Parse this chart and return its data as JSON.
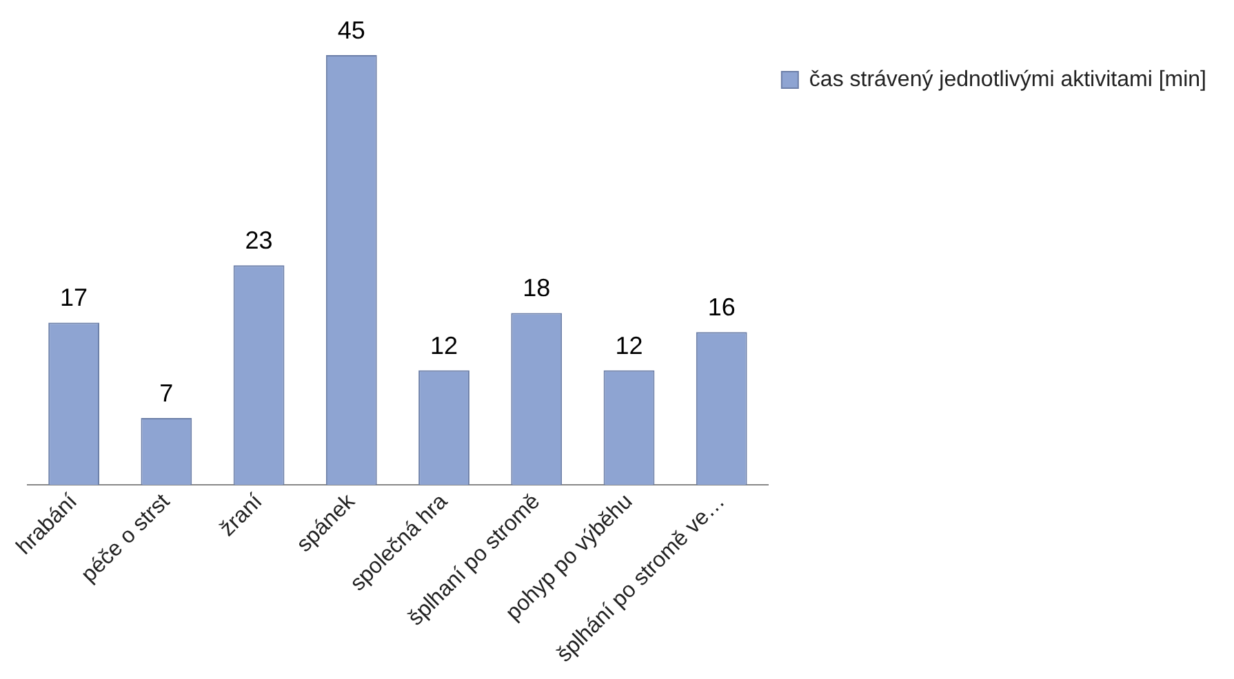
{
  "chart_data": {
    "type": "bar",
    "categories": [
      "hrabání",
      "péče o strst",
      "žraní",
      "spánek",
      "společná hra",
      "šplhaní po stromě",
      "pohyp po výběhu",
      "šplhání po stromě ve…"
    ],
    "series": [
      {
        "name": "čas strávený jednotlivými aktivitami [min]",
        "color": "#8ea4d2",
        "values": [
          17,
          7,
          23,
          45,
          12,
          18,
          12,
          16
        ]
      }
    ],
    "data_labels": true,
    "legend": "top right",
    "grid": false
  }
}
